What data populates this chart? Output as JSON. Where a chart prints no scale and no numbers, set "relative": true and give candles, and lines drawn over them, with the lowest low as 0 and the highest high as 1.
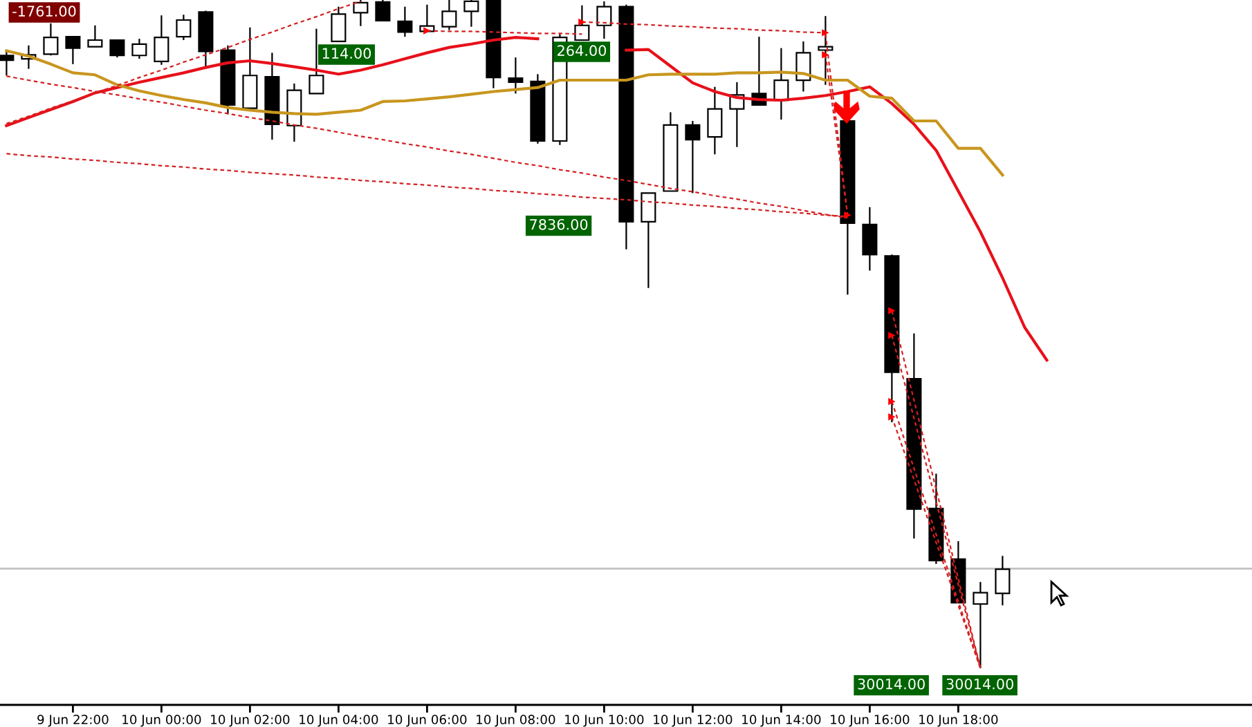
{
  "chart_data": {
    "type": "candlestick",
    "relative": true,
    "categories": [
      null,
      null,
      null,
      "9 Jun 22:00",
      null,
      null,
      null,
      "10 Jun 00:00",
      null,
      null,
      null,
      "10 Jun 02:00",
      null,
      null,
      null,
      "10 Jun 04:00",
      null,
      null,
      null,
      "10 Jun 06:00",
      null,
      null,
      null,
      "10 Jun 08:00",
      null,
      null,
      null,
      "10 Jun 10:00",
      null,
      null,
      null,
      "10 Jun 12:00",
      null,
      null,
      null,
      "10 Jun 14:00",
      null,
      null,
      null,
      "10 Jun 16:00",
      null,
      null,
      null,
      "10 Jun 18:00",
      null,
      null,
      null,
      null
    ],
    "ohlc": [
      [
        0.917,
        0.925,
        0.887,
        0.91
      ],
      [
        0.912,
        0.932,
        0.897,
        0.918
      ],
      [
        0.919,
        0.965,
        0.917,
        0.944
      ],
      [
        0.945,
        0.945,
        0.904,
        0.928
      ],
      [
        0.93,
        0.962,
        0.93,
        0.94
      ],
      [
        0.94,
        0.94,
        0.914,
        0.917
      ],
      [
        0.917,
        0.942,
        0.912,
        0.934
      ],
      [
        0.908,
        0.977,
        0.903,
        0.944
      ],
      [
        0.945,
        0.978,
        0.94,
        0.97
      ],
      [
        0.982,
        0.984,
        0.899,
        0.923
      ],
      [
        0.925,
        0.932,
        0.829,
        0.843
      ],
      [
        0.838,
        0.959,
        0.838,
        0.887
      ],
      [
        0.885,
        0.921,
        0.791,
        0.814
      ],
      [
        0.812,
        0.875,
        0.788,
        0.865
      ],
      [
        0.86,
        0.957,
        0.86,
        0.887
      ],
      [
        0.938,
        0.99,
        0.938,
        0.979
      ],
      [
        0.981,
        1.0,
        0.961,
        0.996
      ],
      [
        0.997,
        1.0,
        0.969,
        0.969
      ],
      [
        0.968,
        0.99,
        0.945,
        0.952
      ],
      [
        0.953,
        0.993,
        0.953,
        0.961
      ],
      [
        0.96,
        1.0,
        0.955,
        0.983
      ],
      [
        0.983,
        1.0,
        0.96,
        0.998
      ],
      [
        1.0,
        1.0,
        0.868,
        0.884
      ],
      [
        0.883,
        0.914,
        0.86,
        0.877
      ],
      [
        0.878,
        0.889,
        0.785,
        0.789
      ],
      [
        0.789,
        0.949,
        0.783,
        0.944
      ],
      [
        0.94,
        0.992,
        0.94,
        0.962
      ],
      [
        0.962,
        0.998,
        0.942,
        0.99
      ],
      [
        0.99,
        0.993,
        0.627,
        0.668
      ],
      [
        0.668,
        0.711,
        0.569,
        0.711
      ],
      [
        0.714,
        0.832,
        0.714,
        0.813
      ],
      [
        0.813,
        0.819,
        0.711,
        0.791
      ],
      [
        0.795,
        0.87,
        0.769,
        0.837
      ],
      [
        0.837,
        0.877,
        0.78,
        0.858
      ],
      [
        0.86,
        0.945,
        0.843,
        0.843
      ],
      [
        0.85,
        0.928,
        0.821,
        0.88
      ],
      [
        0.88,
        0.938,
        0.863,
        0.921
      ],
      [
        0.925,
        0.976,
        0.873,
        0.93
      ],
      [
        0.819,
        0.819,
        0.559,
        0.666
      ],
      [
        0.664,
        0.69,
        0.595,
        0.619
      ],
      [
        0.617,
        0.619,
        0.368,
        0.443
      ],
      [
        0.433,
        0.501,
        0.194,
        0.238
      ],
      [
        0.239,
        0.291,
        0.156,
        0.161
      ],
      [
        0.163,
        0.19,
        0.098,
        0.098
      ],
      [
        0.096,
        0.129,
        0.0,
        0.113
      ],
      [
        0.112,
        0.168,
        0.094,
        0.148
      ],
      null,
      null
    ],
    "colors": [
      "#000000",
      "#ffffff",
      "#ffffff",
      "#000000",
      "#ffffff",
      "#000000",
      "#ffffff",
      "#ffffff",
      "#ffffff",
      "#000000",
      "#000000",
      "#ffffff",
      "#000000",
      "#ffffff",
      "#ffffff",
      "#ffffff",
      "#ffffff",
      "#000000",
      "#000000",
      "#ffffff",
      "#ffffff",
      "#ffffff",
      "#000000",
      "#000000",
      "#000000",
      "#ffffff",
      "#ffffff",
      "#ffffff",
      "#000000",
      "#ffffff",
      "#ffffff",
      "#000000",
      "#ffffff",
      "#ffffff",
      "#000000",
      "#ffffff",
      "#ffffff",
      "#ffffff",
      "#000000",
      "#000000",
      "#000000",
      "#000000",
      "#000000",
      "#000000",
      "#ffffff",
      "#ffffff",
      null,
      null
    ],
    "series": [
      {
        "type": "line",
        "color": "#e8101a",
        "values": [
          0.812,
          0.824,
          0.836,
          0.848,
          0.861,
          0.869,
          0.877,
          0.884,
          0.891,
          0.899,
          0.906,
          0.909,
          0.905,
          0.9,
          0.895,
          0.889,
          0.895,
          0.903,
          0.912,
          0.921,
          0.929,
          0.934,
          0.94,
          0.944,
          0.942,
          null,
          null,
          null,
          0.925,
          0.926,
          0.901,
          0.876,
          0.863,
          0.854,
          0.851,
          0.85,
          0.853,
          0.857,
          0.863,
          0.87,
          0.845,
          0.814,
          0.775,
          0.714,
          0.653,
          0.584,
          0.51,
          0.461
        ]
      },
      {
        "type": "line",
        "color": "#c8961e",
        "values": [
          0.924,
          0.916,
          0.904,
          0.891,
          0.888,
          0.873,
          0.864,
          0.857,
          0.851,
          0.846,
          0.839,
          0.835,
          0.832,
          0.83,
          0.829,
          0.832,
          0.835,
          0.848,
          0.849,
          0.852,
          0.855,
          0.859,
          0.863,
          0.866,
          0.869,
          0.88,
          0.88,
          0.88,
          0.88,
          0.888,
          0.889,
          0.889,
          0.889,
          0.891,
          0.891,
          0.892,
          0.89,
          0.88,
          0.88,
          0.856,
          0.853,
          0.819,
          0.819,
          0.778,
          0.778,
          0.738,
          null,
          null
        ]
      },
      {
        "type": "line",
        "color": "#d42020",
        "line_style": "dashed",
        "values": [
          0.886,
          0.88,
          0.874,
          0.869,
          0.863,
          0.858,
          0.852,
          0.847,
          0.841,
          0.835,
          0.83,
          0.824,
          0.819,
          0.813,
          0.808,
          0.802,
          0.796,
          0.791,
          0.785,
          0.78,
          0.774,
          0.769,
          0.763,
          0.757,
          0.752,
          0.746,
          0.741,
          0.735,
          0.73,
          0.724,
          0.718,
          0.713,
          0.707,
          0.702,
          0.696,
          0.691,
          0.685,
          0.679,
          0.674,
          null,
          null,
          null,
          null,
          null,
          null,
          null,
          null,
          null
        ]
      },
      {
        "type": "line",
        "color": "#d42020",
        "line_style": "dashed",
        "values": [
          0.77,
          0.767,
          0.765,
          0.762,
          0.76,
          0.757,
          0.755,
          0.752,
          0.75,
          0.747,
          0.745,
          0.742,
          0.74,
          0.738,
          0.735,
          0.733,
          0.73,
          0.728,
          0.725,
          0.723,
          0.72,
          0.718,
          0.715,
          0.713,
          0.71,
          0.708,
          0.705,
          0.703,
          0.701,
          0.698,
          0.696,
          0.693,
          0.691,
          0.688,
          0.686,
          0.683,
          0.681,
          0.678,
          0.676,
          null,
          null,
          null,
          null,
          null,
          null,
          null,
          null,
          null
        ]
      },
      {
        "type": "line",
        "color": "#d42020",
        "line_style": "dashed",
        "values": [
          0.815,
          0.826,
          0.838,
          0.849,
          0.861,
          0.872,
          0.884,
          0.895,
          0.907,
          0.918,
          0.929,
          0.941,
          0.952,
          0.964,
          0.975,
          0.987,
          0.998,
          null,
          null,
          null,
          null,
          null,
          null,
          null,
          null,
          null,
          null,
          null,
          null,
          null,
          null,
          null,
          null,
          null,
          null,
          null,
          null,
          null,
          null,
          null,
          null,
          null,
          null,
          null,
          null,
          null,
          null,
          null
        ]
      },
      {
        "type": "line",
        "color": "#d42020",
        "line_style": "dashed",
        "values": [
          null,
          null,
          null,
          null,
          null,
          null,
          null,
          null,
          null,
          null,
          null,
          null,
          null,
          null,
          null,
          null,
          null,
          null,
          null,
          0.954,
          0.953,
          0.953,
          0.952,
          0.951,
          0.95,
          0.95,
          0.949,
          null,
          null,
          null,
          null,
          null,
          null,
          null,
          null,
          null,
          null,
          null,
          null,
          null,
          null,
          null,
          null,
          null,
          null,
          null,
          null,
          null
        ]
      },
      {
        "type": "line",
        "color": "#d42020",
        "line_style": "dashed",
        "values": [
          null,
          null,
          null,
          null,
          null,
          null,
          null,
          null,
          null,
          null,
          null,
          null,
          null,
          null,
          null,
          null,
          null,
          null,
          null,
          null,
          null,
          null,
          null,
          null,
          null,
          null,
          0.967,
          0.966,
          0.964,
          0.963,
          0.961,
          0.96,
          0.958,
          0.957,
          0.955,
          0.954,
          0.952,
          0.951,
          null,
          null,
          null,
          null,
          null,
          null,
          null,
          null,
          null,
          null
        ]
      },
      {
        "type": "line",
        "color": "#d42020",
        "line_style": "dashed",
        "values": [
          null,
          null,
          null,
          null,
          null,
          null,
          null,
          null,
          null,
          null,
          null,
          null,
          null,
          null,
          null,
          null,
          null,
          null,
          null,
          null,
          null,
          null,
          null,
          null,
          null,
          null,
          null,
          null,
          null,
          null,
          null,
          null,
          null,
          null,
          null,
          null,
          null,
          0.949,
          0.678,
          null,
          null,
          null,
          null,
          null,
          null,
          null,
          null,
          null
        ]
      },
      {
        "type": "line",
        "color": "#d42020",
        "line_style": "dashed",
        "values": [
          null,
          null,
          null,
          null,
          null,
          null,
          null,
          null,
          null,
          null,
          null,
          null,
          null,
          null,
          null,
          null,
          null,
          null,
          null,
          null,
          null,
          null,
          null,
          null,
          null,
          null,
          null,
          null,
          null,
          null,
          null,
          null,
          null,
          null,
          null,
          null,
          null,
          0.918,
          0.678,
          null,
          null,
          null,
          null,
          null,
          null,
          null,
          null,
          null
        ]
      },
      {
        "type": "line",
        "color": "#d42020",
        "line_style": "dashed",
        "values": [
          null,
          null,
          null,
          null,
          null,
          null,
          null,
          null,
          null,
          null,
          null,
          null,
          null,
          null,
          null,
          null,
          null,
          null,
          null,
          null,
          null,
          null,
          null,
          null,
          null,
          null,
          null,
          null,
          null,
          null,
          null,
          null,
          null,
          null,
          null,
          null,
          null,
          null,
          null,
          null,
          0.535,
          0.401,
          0.268,
          0.134,
          0.0,
          null,
          null,
          null
        ]
      },
      {
        "type": "line",
        "color": "#d42020",
        "line_style": "dashed",
        "values": [
          null,
          null,
          null,
          null,
          null,
          null,
          null,
          null,
          null,
          null,
          null,
          null,
          null,
          null,
          null,
          null,
          null,
          null,
          null,
          null,
          null,
          null,
          null,
          null,
          null,
          null,
          null,
          null,
          null,
          null,
          null,
          null,
          null,
          null,
          null,
          null,
          null,
          null,
          null,
          null,
          0.498,
          0.374,
          0.249,
          0.125,
          0.0,
          null,
          null,
          null
        ]
      },
      {
        "type": "line",
        "color": "#d42020",
        "line_style": "dashed",
        "values": [
          null,
          null,
          null,
          null,
          null,
          null,
          null,
          null,
          null,
          null,
          null,
          null,
          null,
          null,
          null,
          null,
          null,
          null,
          null,
          null,
          null,
          null,
          null,
          null,
          null,
          null,
          null,
          null,
          null,
          null,
          null,
          null,
          null,
          null,
          null,
          null,
          null,
          null,
          null,
          null,
          0.399,
          0.299,
          0.2,
          0.1,
          0.0,
          null,
          null,
          null
        ]
      },
      {
        "type": "line",
        "color": "#d42020",
        "line_style": "dashed",
        "values": [
          null,
          null,
          null,
          null,
          null,
          null,
          null,
          null,
          null,
          null,
          null,
          null,
          null,
          null,
          null,
          null,
          null,
          null,
          null,
          null,
          null,
          null,
          null,
          null,
          null,
          null,
          null,
          null,
          null,
          null,
          null,
          null,
          null,
          null,
          null,
          null,
          null,
          null,
          null,
          null,
          0.376,
          0.282,
          0.188,
          0.094,
          0.0,
          null,
          null,
          null
        ]
      },
      {
        "type": "scatter",
        "color": "#ff0000",
        "marker": "triangle",
        "values": [
          null,
          null,
          null,
          null,
          null,
          null,
          null,
          null,
          null,
          null,
          null,
          null,
          null,
          null,
          null,
          null,
          null,
          null,
          null,
          0.954,
          null,
          null,
          null,
          null,
          null,
          null,
          0.967,
          null,
          null,
          null,
          null,
          null,
          null,
          null,
          null,
          null,
          null,
          0.951,
          0.678,
          null,
          0.535,
          null,
          null,
          null,
          null,
          null,
          null,
          null
        ]
      },
      {
        "type": "scatter",
        "color": "#ff0000",
        "marker": "triangle",
        "values": [
          null,
          null,
          null,
          null,
          null,
          null,
          null,
          null,
          null,
          null,
          null,
          null,
          null,
          null,
          null,
          null,
          null,
          null,
          null,
          null,
          null,
          null,
          null,
          null,
          null,
          null,
          null,
          null,
          null,
          null,
          null,
          null,
          null,
          null,
          null,
          null,
          null,
          0.918,
          null,
          null,
          0.498,
          null,
          null,
          null,
          null,
          null,
          null,
          null
        ]
      },
      {
        "type": "scatter",
        "color": "#ff0000",
        "marker": "triangle",
        "values": [
          null,
          null,
          null,
          null,
          null,
          null,
          null,
          null,
          null,
          null,
          null,
          null,
          null,
          null,
          null,
          null,
          null,
          null,
          null,
          null,
          null,
          null,
          null,
          null,
          null,
          null,
          null,
          null,
          null,
          null,
          null,
          null,
          null,
          null,
          null,
          null,
          null,
          null,
          null,
          null,
          0.399,
          null,
          null,
          null,
          null,
          null,
          null,
          null
        ]
      },
      {
        "type": "scatter",
        "color": "#ff0000",
        "marker": "triangle",
        "values": [
          null,
          null,
          null,
          null,
          null,
          null,
          null,
          null,
          null,
          null,
          null,
          null,
          null,
          null,
          null,
          null,
          null,
          null,
          null,
          null,
          null,
          null,
          null,
          null,
          null,
          null,
          null,
          null,
          null,
          null,
          null,
          null,
          null,
          null,
          null,
          null,
          null,
          null,
          null,
          null,
          0.376,
          null,
          null,
          null,
          null,
          null,
          null,
          null
        ]
      }
    ],
    "ref_lines": [
      {
        "axis": "y",
        "value": 0.149,
        "color": "#c0c0c0"
      }
    ],
    "annotations": [
      "-1761.00",
      "114.00",
      "264.00",
      "7836.00",
      "30014.00",
      "30014.00"
    ]
  }
}
